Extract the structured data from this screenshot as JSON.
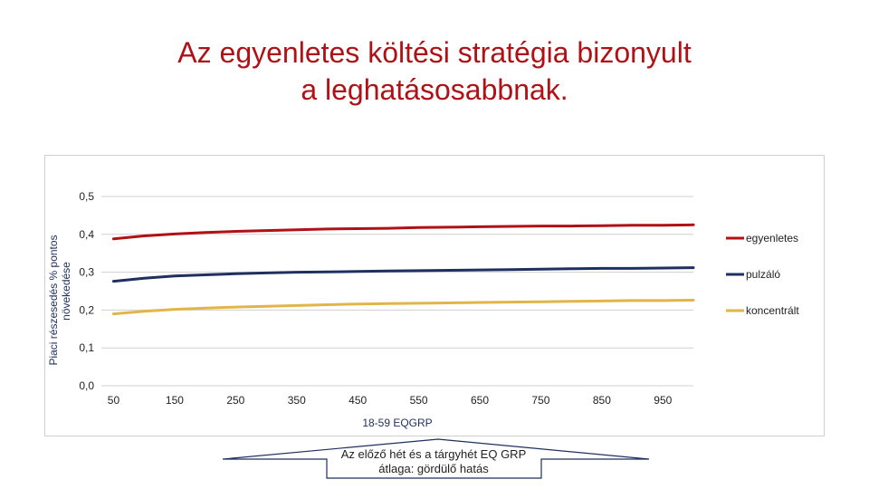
{
  "slide": {
    "title_line1": "Az egyenletes költési stratégia bizonyult",
    "title_line2": "a leghatásosabbnak."
  },
  "chart_data": {
    "type": "line",
    "title": "",
    "xlabel": "18-59 EQGRP",
    "ylabel_line1": "Piaci részesedés % pontos",
    "ylabel_line2": "növekedése",
    "x": [
      50,
      100,
      150,
      200,
      250,
      300,
      350,
      400,
      450,
      500,
      550,
      600,
      650,
      700,
      750,
      800,
      850,
      900,
      950,
      1000
    ],
    "x_ticks": [
      "50",
      "150",
      "250",
      "350",
      "450",
      "550",
      "650",
      "750",
      "850",
      "950"
    ],
    "x_tick_values": [
      50,
      150,
      250,
      350,
      450,
      550,
      650,
      750,
      850,
      950
    ],
    "ylim": [
      0,
      0.5
    ],
    "y_ticks": [
      "0,0",
      "0,1",
      "0,2",
      "0,3",
      "0,4",
      "0,5"
    ],
    "y_tick_values": [
      0,
      0.1,
      0.2,
      0.3,
      0.4,
      0.5
    ],
    "grid": true,
    "legend_position": "right",
    "series": [
      {
        "name": "egyenletes",
        "color": "#b01116",
        "values": [
          0.388,
          0.396,
          0.401,
          0.405,
          0.408,
          0.41,
          0.412,
          0.414,
          0.415,
          0.416,
          0.418,
          0.419,
          0.42,
          0.421,
          0.422,
          0.422,
          0.423,
          0.424,
          0.424,
          0.425
        ]
      },
      {
        "name": "pulzáló",
        "color": "#1f2f5f",
        "values": [
          0.276,
          0.284,
          0.29,
          0.293,
          0.296,
          0.298,
          0.3,
          0.301,
          0.302,
          0.303,
          0.304,
          0.305,
          0.306,
          0.307,
          0.308,
          0.309,
          0.31,
          0.31,
          0.311,
          0.312
        ]
      },
      {
        "name": "koncentrált",
        "color": "#e2b54a",
        "values": [
          0.19,
          0.197,
          0.202,
          0.205,
          0.208,
          0.21,
          0.212,
          0.214,
          0.216,
          0.217,
          0.218,
          0.219,
          0.22,
          0.221,
          0.222,
          0.223,
          0.224,
          0.225,
          0.225,
          0.226
        ]
      }
    ]
  },
  "callout": {
    "line1": "Az előző hét és a tárgyhét EQ GRP",
    "line2": "átlaga: gördülő hatás"
  }
}
